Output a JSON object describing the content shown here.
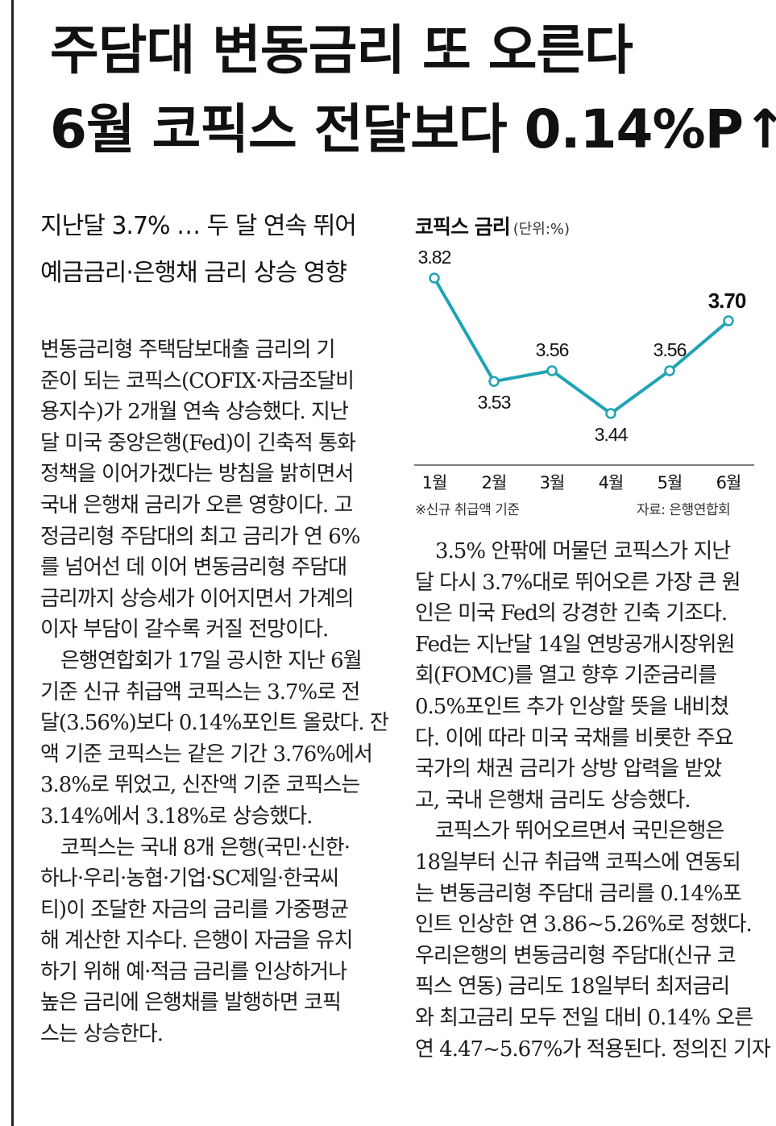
{
  "headline": {
    "line1": "주담대 변동금리 또 오른다",
    "line2": "6월 코픽스 전달보다 0.14%P↑"
  },
  "subhead": {
    "line1": "지난달 3.7% … 두 달 연속 뛰어",
    "line2": "예금금리·은행채 금리 상승 영향"
  },
  "chart": {
    "title": "코픽스 금리",
    "unit": "(단위:%)",
    "note": "※신규 취급액 기준",
    "source": "자료: 은행연합회",
    "line_color": "#1fa3b5"
  },
  "chart_data": {
    "type": "line",
    "title": "코픽스 금리",
    "ylabel": "(단위:%)",
    "categories": [
      "1월",
      "2월",
      "3월",
      "4월",
      "5월",
      "6월"
    ],
    "values": [
      3.82,
      3.53,
      3.56,
      3.44,
      3.56,
      3.7
    ],
    "labels": [
      "3.82",
      "3.53",
      "3.56",
      "3.44",
      "3.56",
      "3.70"
    ],
    "grid": false
  },
  "body_left": [
    "변동금리형 주택담보대출 금리의 기",
    "준이 되는 코픽스(COFIX·자금조달비",
    "용지수)가 2개월 연속 상승했다. 지난",
    "달 미국 중앙은행(Fed)이 긴축적 통화",
    "정책을 이어가겠다는 방침을 밝히면서",
    "국내 은행채 금리가 오른 영향이다. 고",
    "정금리형 주담대의 최고 금리가 연 6%",
    "를 넘어선 데 이어 변동금리형 주담대",
    "금리까지 상승세가 이어지면서 가계의",
    "이자 부담이 갈수록 커질 전망이다.",
    "  은행연합회가 17일 공시한 지난 6월",
    "기준 신규 취급액 코픽스는 3.7%로 전",
    "달(3.56%)보다 0.14%포인트 올랐다. 잔",
    "액 기준 코픽스는 같은 기간 3.76%에서",
    "3.8%로 뛰었고, 신잔액 기준 코픽스는",
    "3.14%에서 3.18%로 상승했다.",
    "  코픽스는 국내 8개 은행(국민·신한·",
    "하나·우리·농협·기업·SC제일·한국씨",
    "티)이 조달한 자금의 금리를 가중평균",
    "해 계산한 지수다. 은행이 자금을 유치",
    "하기 위해 예·적금 금리를 인상하거나",
    "높은 금리에 은행채를 발행하면 코픽",
    "스는 상승한다."
  ],
  "body_right": [
    "  3.5% 안팎에 머물던 코픽스가 지난",
    "달 다시 3.7%대로 뛰어오른 가장 큰 원",
    "인은 미국 Fed의 강경한 긴축 기조다.",
    "Fed는 지난달 14일 연방공개시장위원",
    "회(FOMC)를 열고 향후 기준금리를",
    "0.5%포인트 추가 인상할 뜻을 내비쳤",
    "다. 이에 따라 미국 국채를 비롯한 주요",
    "국가의 채권 금리가 상방 압력을 받았",
    "고, 국내 은행채 금리도 상승했다.",
    "  코픽스가 뛰어오르면서 국민은행은",
    "18일부터 신규 취급액 코픽스에 연동되",
    "는 변동금리형 주담대 금리를 0.14%포",
    "인트 인상한 연 3.86~5.26%로 정했다.",
    "우리은행의 변동금리형 주담대(신규 코",
    "픽스 연동) 금리도 18일부터 최저금리",
    "와 최고금리 모두 전일 대비 0.14% 오른",
    "연 4.47~5.67%가 적용된다.   정의진 기자"
  ]
}
